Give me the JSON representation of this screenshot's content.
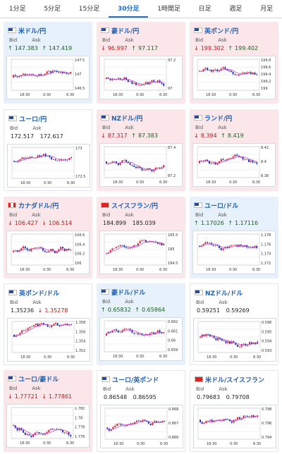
{
  "tabs": [
    {
      "label": "1分足",
      "active": false
    },
    {
      "label": "5分足",
      "active": false
    },
    {
      "label": "15分足",
      "active": false
    },
    {
      "label": "30分足",
      "active": true
    },
    {
      "label": "1時間足",
      "active": false
    },
    {
      "label": "日足",
      "active": false
    },
    {
      "label": "週足",
      "active": false
    },
    {
      "label": "月足",
      "active": false
    }
  ],
  "colors": {
    "up_card": "#e6f1fb",
    "down_card": "#fbe7ea",
    "candle_up": "#d21f3c",
    "candle_down": "#1f2fb0",
    "ma_line": "#c03fc0"
  },
  "bid_label": "Bid",
  "ask_label": "Ask",
  "cards": [
    {
      "name": "米ドル/円",
      "flag": "us",
      "trend": "up",
      "bid": "147.383",
      "ask": "147.419",
      "bid_dir": "up",
      "ask_dir": "up",
      "ticks": [
        "147.5",
        "147",
        "146.5"
      ],
      "xticks": [
        "18:30",
        "0:30",
        "6:30"
      ]
    },
    {
      "name": "豪ドル/円",
      "flag": "au",
      "trend": "down",
      "bid": "96.997",
      "ask": "97.117",
      "bid_dir": "down",
      "ask_dir": "up",
      "ticks": [
        "97.2",
        "97"
      ],
      "xticks": [
        "18:30",
        "0:30",
        "6:30"
      ]
    },
    {
      "name": "英ポンド/円",
      "flag": "gb",
      "trend": "down",
      "bid": "199.302",
      "ask": "199.402",
      "bid_dir": "down",
      "ask_dir": "up",
      "ticks": [
        "199.8",
        "199.6",
        "199.4",
        "199.2",
        "199"
      ],
      "xticks": [
        "18:30",
        "0:30",
        "6:30"
      ]
    },
    {
      "name": "ユーロ/円",
      "flag": "eu",
      "trend": "neutral",
      "bid": "172.517",
      "ask": "172.617",
      "bid_dir": "flat",
      "ask_dir": "flat",
      "ticks": [
        "173",
        "172.5"
      ],
      "xticks": [
        "18:30",
        "0:30",
        "6:30"
      ]
    },
    {
      "name": "NZドル/円",
      "flag": "nz",
      "trend": "down",
      "bid": "87.317",
      "ask": "87.383",
      "bid_dir": "down",
      "ask_dir": "up",
      "ticks": [
        "87.4",
        "87.2"
      ],
      "xticks": [
        "18:30",
        "0:30",
        "6:30"
      ]
    },
    {
      "name": "ランド/円",
      "flag": "za",
      "trend": "down",
      "bid": "8.394",
      "ask": "8.419",
      "bid_dir": "down",
      "ask_dir": "up",
      "ticks": [
        "8.42",
        "8.4",
        "8.38"
      ],
      "xticks": [
        "18:30",
        "0:30",
        "6:30"
      ]
    },
    {
      "name": "カナダドル/円",
      "flag": "ca",
      "trend": "down",
      "bid": "106.427",
      "ask": "106.514",
      "bid_dir": "down",
      "ask_dir": "down",
      "ticks": [
        "106.6",
        "106.4",
        "106.2",
        "106"
      ],
      "xticks": [
        "18:30",
        "0:30",
        "6:30"
      ]
    },
    {
      "name": "スイスフラン/円",
      "flag": "ch",
      "trend": "down",
      "bid": "184.899",
      "ask": "185.039",
      "bid_dir": "flat",
      "ask_dir": "flat",
      "ticks": [
        "185.5",
        "185",
        "184.5"
      ],
      "xticks": [
        "18:30",
        "0:30",
        "6:30"
      ]
    },
    {
      "name": "ユーロ/ドル",
      "flag": "eu",
      "trend": "up",
      "bid": "1.17026",
      "ask": "1.17116",
      "bid_dir": "up",
      "ask_dir": "up",
      "ticks": [
        "1.178",
        "1.176",
        "1.174",
        "1.172"
      ],
      "xticks": [
        "18:30",
        "0:30",
        "6:30"
      ]
    },
    {
      "name": "英ポンド/ドル",
      "flag": "gb",
      "trend": "neutral",
      "bid": "1.35236",
      "ask": "1.35278",
      "bid_dir": "flat",
      "ask_dir": "down",
      "ticks": [
        "1.358",
        "1.356",
        "1.354",
        "1.352"
      ],
      "xticks": [
        "18:30",
        "0:30",
        "6:30"
      ]
    },
    {
      "name": "豪ドル/ドル",
      "flag": "au",
      "trend": "up",
      "bid": "0.65832",
      "ask": "0.65864",
      "bid_dir": "up",
      "ask_dir": "up",
      "ticks": [
        "0.662",
        "0.661",
        "0.66",
        "0.659"
      ],
      "xticks": [
        "18:30",
        "0:30",
        "6:30"
      ]
    },
    {
      "name": "NZドル/ドル",
      "flag": "nz",
      "trend": "neutral",
      "bid": "0.59251",
      "ask": "0.59269",
      "bid_dir": "flat",
      "ask_dir": "flat",
      "ticks": [
        "0.596",
        "0.595",
        "0.594",
        "0.593"
      ],
      "xticks": [
        "18:30",
        "0:30",
        "6:30"
      ]
    },
    {
      "name": "ユーロ/豪ドル",
      "flag": "eu",
      "trend": "down",
      "bid": "1.77721",
      "ask": "1.77861",
      "bid_dir": "down",
      "ask_dir": "down",
      "ticks": [
        "1.782",
        "1.78",
        "1.778",
        "1.776"
      ],
      "xticks": [
        "18:30",
        "0:30",
        "6:30"
      ]
    },
    {
      "name": "ユーロ/英ポンド",
      "flag": "eu",
      "trend": "neutral",
      "bid": "0.86548",
      "ask": "0.86595",
      "bid_dir": "flat",
      "ask_dir": "flat",
      "ticks": [
        "0.868",
        "0.867",
        "0.866"
      ],
      "xticks": [
        "18:30",
        "0:30",
        "6:30"
      ]
    },
    {
      "name": "米ドル/スイスフラン",
      "flag": "ch",
      "trend": "neutral",
      "bid": "0.79683",
      "ask": "0.79708",
      "bid_dir": "flat",
      "ask_dir": "flat",
      "ticks": [
        "0.798",
        "0.796",
        "0.794"
      ],
      "xticks": [
        "18:30",
        "0:30",
        "6:30"
      ]
    }
  ]
}
